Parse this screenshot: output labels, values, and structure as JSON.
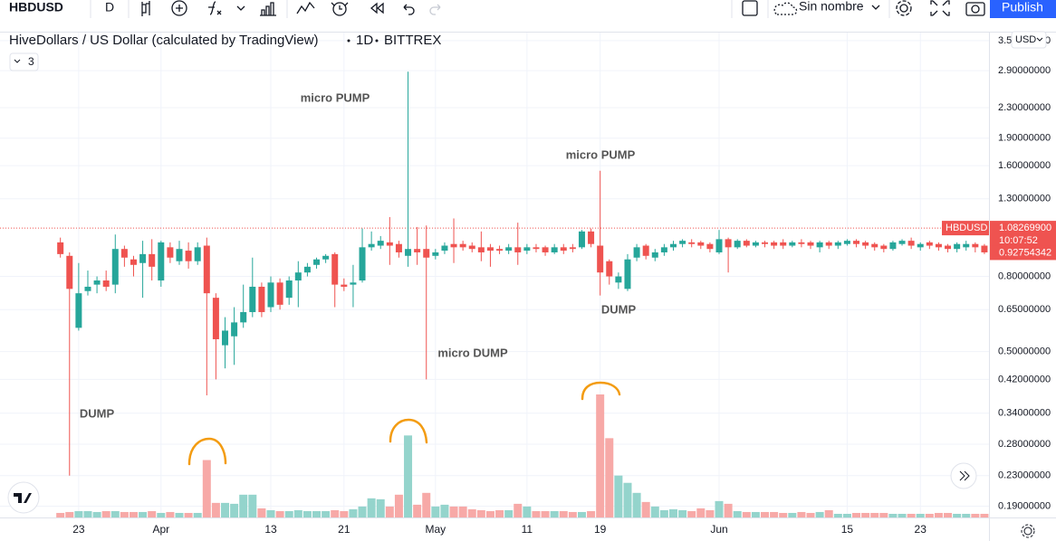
{
  "toolbar": {
    "symbol": "HBDUSD",
    "interval": "D",
    "layout_name": "Sin nombre",
    "publish": "Publish"
  },
  "chart_data": {
    "type": "candlestick",
    "title": "HiveDollars / US Dollar (calculated by TradingView)",
    "timeframe": "1D",
    "exchange": "BITTREX",
    "indicator_count": "3",
    "currency": "USD",
    "log_scale": true,
    "grid": true,
    "up_color": "#26a69a",
    "down_color": "#ef5350",
    "volume_up_color": "#94d4cc",
    "volume_down_color": "#f7a9a7",
    "ylim": [
      0.177,
      3.68
    ],
    "yticks": [
      {
        "value": 0.19,
        "label": "0.19000000"
      },
      {
        "value": 0.23,
        "label": "0.23000000"
      },
      {
        "value": 0.28,
        "label": "0.28000000"
      },
      {
        "value": 0.34,
        "label": "0.34000000"
      },
      {
        "value": 0.42,
        "label": "0.42000000"
      },
      {
        "value": 0.5,
        "label": "0.50000000"
      },
      {
        "value": 0.65,
        "label": "0.65000000"
      },
      {
        "value": 0.8,
        "label": "0.80000000"
      },
      {
        "value": 1.3,
        "label": "1.30000000"
      },
      {
        "value": 1.6,
        "label": "1.60000000"
      },
      {
        "value": 1.9,
        "label": "1.90000000"
      },
      {
        "value": 2.3,
        "label": "2.30000000"
      },
      {
        "value": 2.9,
        "label": "2.90000000"
      },
      {
        "value": 3.5,
        "label": "3.50000000"
      }
    ],
    "xlim": [
      -6.6,
      101.5
    ],
    "xticks": [
      {
        "value": 2,
        "label": "23"
      },
      {
        "value": 11,
        "label": "Apr"
      },
      {
        "value": 23,
        "label": "13"
      },
      {
        "value": 31,
        "label": "21"
      },
      {
        "value": 41,
        "label": "May"
      },
      {
        "value": 51,
        "label": "11"
      },
      {
        "value": 59,
        "label": "19"
      },
      {
        "value": 72,
        "label": "Jun"
      },
      {
        "value": 86,
        "label": "15"
      },
      {
        "value": 94,
        "label": "23"
      }
    ],
    "open": [
      0.99,
      0.91,
      0.58,
      0.73,
      0.76,
      0.78,
      0.76,
      0.95,
      0.89,
      0.87,
      0.92,
      0.78,
      0.96,
      0.88,
      0.94,
      0.88,
      0.97,
      0.7,
      0.52,
      0.55,
      0.6,
      0.64,
      0.75,
      0.66,
      0.77,
      0.7,
      0.78,
      0.82,
      0.86,
      0.89,
      0.92,
      0.76,
      0.76,
      0.78,
      0.96,
      0.97,
      0.99,
      0.98,
      0.91,
      0.95,
      0.95,
      0.91,
      0.94,
      0.98,
      0.98,
      0.97,
      0.96,
      0.96,
      0.95,
      0.94,
      0.96,
      0.94,
      0.96,
      0.96,
      0.93,
      0.96,
      0.96,
      0.96,
      1.06,
      0.97,
      0.88,
      0.77,
      0.74,
      0.9,
      0.97,
      0.9,
      0.93,
      0.96,
      0.98,
      0.99,
      0.99,
      0.98,
      0.93,
      1.01,
      0.96,
      1.0,
      0.97,
      0.99,
      0.99,
      0.99,
      0.97,
      0.99,
      0.99,
      0.96,
      0.99,
      0.97,
      0.98,
      1.0,
      0.99,
      0.98,
      0.97,
      0.95,
      0.98,
      1.0,
      0.96,
      0.99,
      0.98,
      0.97,
      0.95,
      0.96,
      0.98,
      0.97
    ],
    "close": [
      0.92,
      0.74,
      0.72,
      0.75,
      0.78,
      0.75,
      0.95,
      0.9,
      0.86,
      0.92,
      0.85,
      0.99,
      0.9,
      0.95,
      0.88,
      0.96,
      0.72,
      0.54,
      0.57,
      0.6,
      0.64,
      0.75,
      0.64,
      0.77,
      0.67,
      0.78,
      0.82,
      0.85,
      0.89,
      0.91,
      0.76,
      0.75,
      0.77,
      0.96,
      0.98,
      1.0,
      0.97,
      0.93,
      0.95,
      0.93,
      0.9,
      0.93,
      0.97,
      0.96,
      0.96,
      0.95,
      0.93,
      0.94,
      0.94,
      0.96,
      0.93,
      0.96,
      0.95,
      0.93,
      0.96,
      0.94,
      0.95,
      1.06,
      0.98,
      0.82,
      0.8,
      0.8,
      0.89,
      0.96,
      0.91,
      0.93,
      0.96,
      0.98,
      1.0,
      0.98,
      0.97,
      0.95,
      1.01,
      0.96,
      1.0,
      0.97,
      0.99,
      0.98,
      0.97,
      0.97,
      0.99,
      0.98,
      0.97,
      0.99,
      0.97,
      0.99,
      1.0,
      0.98,
      0.97,
      0.96,
      0.95,
      0.99,
      1.0,
      0.97,
      0.98,
      0.97,
      0.96,
      0.95,
      0.98,
      0.98,
      0.96,
      0.93
    ],
    "high": [
      1.02,
      0.93,
      0.87,
      0.83,
      0.8,
      0.83,
      1.04,
      0.97,
      0.91,
      1.0,
      1.01,
      1.0,
      0.99,
      1.0,
      0.99,
      0.99,
      1.02,
      0.72,
      0.62,
      0.66,
      0.76,
      0.9,
      0.77,
      0.8,
      0.79,
      0.8,
      0.88,
      0.87,
      0.9,
      0.92,
      0.93,
      0.79,
      0.86,
      1.08,
      1.06,
      1.03,
      1.16,
      1.0,
      2.88,
      1.09,
      1.1,
      0.95,
      0.99,
      1.15,
      1.0,
      0.99,
      1.06,
      0.98,
      0.97,
      0.98,
      1.12,
      0.98,
      0.98,
      0.97,
      0.98,
      0.98,
      0.98,
      1.07,
      1.08,
      1.55,
      0.89,
      0.82,
      0.92,
      0.98,
      0.98,
      0.95,
      0.98,
      1.0,
      1.01,
      1.01,
      1.0,
      0.99,
      1.07,
      1.02,
      1.01,
      1.01,
      1.0,
      1.0,
      1.0,
      1.01,
      1.0,
      1.01,
      1.0,
      1.0,
      1.0,
      1.0,
      1.01,
      1.01,
      1.0,
      0.99,
      0.98,
      1.0,
      1.01,
      1.02,
      0.99,
      1.0,
      0.99,
      0.98,
      0.99,
      1.0,
      0.99,
      0.98
    ],
    "low": [
      0.9,
      0.23,
      0.57,
      0.71,
      0.72,
      0.73,
      0.72,
      0.85,
      0.8,
      0.7,
      0.78,
      0.75,
      0.87,
      0.86,
      0.84,
      0.86,
      0.38,
      0.42,
      0.45,
      0.46,
      0.58,
      0.62,
      0.62,
      0.64,
      0.65,
      0.67,
      0.66,
      0.8,
      0.84,
      0.87,
      0.66,
      0.73,
      0.66,
      0.77,
      0.94,
      0.95,
      0.86,
      0.9,
      0.85,
      0.86,
      0.42,
      0.89,
      0.92,
      0.87,
      0.94,
      0.93,
      0.88,
      0.85,
      0.92,
      0.92,
      0.86,
      0.92,
      0.93,
      0.91,
      0.92,
      0.92,
      0.93,
      0.95,
      0.96,
      0.71,
      0.76,
      0.74,
      0.73,
      0.88,
      0.89,
      0.88,
      0.91,
      0.94,
      0.96,
      0.96,
      0.95,
      0.93,
      0.92,
      0.82,
      0.95,
      0.96,
      0.96,
      0.96,
      0.95,
      0.95,
      0.96,
      0.96,
      0.95,
      0.93,
      0.95,
      0.95,
      0.97,
      0.96,
      0.95,
      0.94,
      0.93,
      0.94,
      0.97,
      0.95,
      0.94,
      0.95,
      0.94,
      0.93,
      0.93,
      0.94,
      0.93,
      0.92
    ],
    "volume": [
      5,
      6,
      7,
      7,
      6,
      7,
      7,
      6,
      6,
      6,
      7,
      5,
      6,
      5,
      5,
      5,
      63,
      16,
      16,
      15,
      25,
      25,
      10,
      8,
      7,
      7,
      8,
      7,
      7,
      7,
      8,
      7,
      9,
      12,
      21,
      20,
      12,
      25,
      90,
      14,
      27,
      12,
      14,
      12,
      12,
      9,
      8,
      7,
      8,
      8,
      15,
      12,
      7,
      7,
      7,
      7,
      6,
      6,
      7,
      135,
      87,
      46,
      38,
      27,
      17,
      12,
      8,
      9,
      8,
      7,
      10,
      8,
      18,
      15,
      7,
      6,
      6,
      6,
      6,
      5,
      5,
      6,
      5,
      6,
      8,
      4,
      4,
      5,
      5,
      5,
      5,
      4,
      4,
      4,
      4,
      4,
      5,
      5,
      4,
      4,
      4,
      4
    ],
    "price_line": {
      "value": 1.082699,
      "label": "1.08269900"
    },
    "last_price": {
      "value": 0.92754342,
      "label": "0.92754342"
    },
    "countdown": "10:07:52",
    "annotations": [
      "micro PUMP",
      "micro PUMP",
      "DUMP",
      "micro DUMP",
      "DUMP"
    ]
  }
}
